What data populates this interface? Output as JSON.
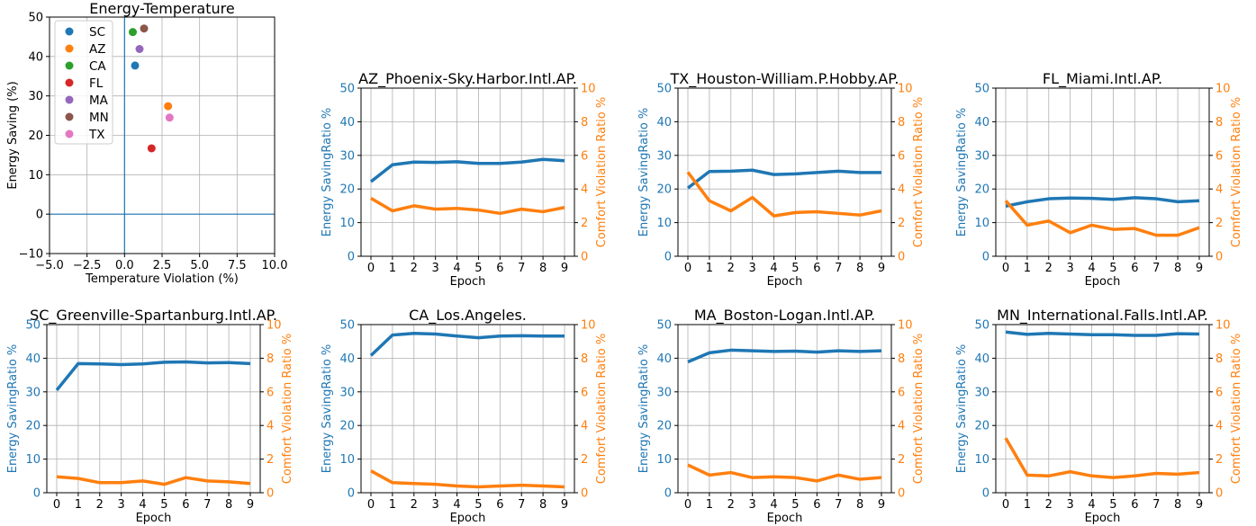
{
  "colors": {
    "energy": "#1f77b4",
    "comfort": "#ff7f0e",
    "scatter": {
      "SC": "#1f77b4",
      "AZ": "#ff7f0e",
      "CA": "#2ca02c",
      "FL": "#d62728",
      "MA": "#9467bd",
      "MN": "#8c564b",
      "TX": "#e377c2"
    }
  },
  "chart_data": [
    {
      "type": "scatter",
      "title": "Energy-Temperature",
      "xlabel": "Temperature Violation (%)",
      "ylabel": "Energy Saving (%)",
      "xlim": [
        -5,
        10
      ],
      "ylim": [
        -10,
        50
      ],
      "xticks": [
        -5,
        -2.5,
        0,
        2.5,
        5,
        7.5,
        10
      ],
      "xtick_labels": [
        "−5.0",
        "−2.5",
        "0.0",
        "2.5",
        "5.0",
        "7.5",
        "10.0"
      ],
      "yticks": [
        -10,
        0,
        10,
        20,
        30,
        40,
        50
      ],
      "ytick_labels": [
        "−10",
        "0",
        "10",
        "20",
        "30",
        "40",
        "50"
      ],
      "grid": true,
      "legend": "top-left",
      "points": [
        {
          "name": "SC",
          "x": 0.7,
          "y": 37.7
        },
        {
          "name": "AZ",
          "x": 2.9,
          "y": 27.4
        },
        {
          "name": "CA",
          "x": 0.55,
          "y": 46.2
        },
        {
          "name": "FL",
          "x": 1.8,
          "y": 16.7
        },
        {
          "name": "MA",
          "x": 1.0,
          "y": 41.9
        },
        {
          "name": "MN",
          "x": 1.3,
          "y": 47.1
        },
        {
          "name": "TX",
          "x": 3.0,
          "y": 24.5
        }
      ]
    },
    {
      "type": "line",
      "title": "AZ_Phoenix-Sky.Harbor.Intl.AP.",
      "xlabel": "Epoch",
      "ylabel_left": "Energy SavingRatio %",
      "ylabel_right": "Comfort  Violation Ratio %",
      "x": [
        0,
        1,
        2,
        3,
        4,
        5,
        6,
        7,
        8,
        9
      ],
      "ylim_left": [
        0,
        50
      ],
      "ylim_right": [
        0,
        10
      ],
      "series": [
        {
          "axis": "left",
          "values": [
            22.2,
            27.2,
            28.0,
            27.9,
            28.1,
            27.6,
            27.6,
            28.0,
            28.8,
            28.4
          ]
        },
        {
          "axis": "right",
          "values": [
            3.45,
            2.7,
            3.0,
            2.8,
            2.85,
            2.75,
            2.55,
            2.8,
            2.65,
            2.9
          ]
        }
      ]
    },
    {
      "type": "line",
      "title": "TX_Houston-William.P.Hobby.AP.",
      "xlabel": "Epoch",
      "ylabel_left": "Energy SavingRatio %",
      "ylabel_right": "Comfort  Violation Ratio %",
      "x": [
        0,
        1,
        2,
        3,
        4,
        5,
        6,
        7,
        8,
        9
      ],
      "ylim_left": [
        0,
        50
      ],
      "ylim_right": [
        0,
        10
      ],
      "series": [
        {
          "axis": "left",
          "values": [
            20.3,
            25.2,
            25.3,
            25.6,
            24.3,
            24.5,
            24.9,
            25.3,
            24.9,
            24.9
          ]
        },
        {
          "axis": "right",
          "values": [
            5.0,
            3.3,
            2.7,
            3.5,
            2.4,
            2.6,
            2.65,
            2.55,
            2.45,
            2.7
          ]
        }
      ]
    },
    {
      "type": "line",
      "title": "FL_Miami.Intl.AP.",
      "xlabel": "Epoch",
      "ylabel_left": "Energy SavingRatio %",
      "ylabel_right": "Comfort  Violation Ratio %",
      "x": [
        0,
        1,
        2,
        3,
        4,
        5,
        6,
        7,
        8,
        9
      ],
      "ylim_left": [
        0,
        50
      ],
      "ylim_right": [
        0,
        10
      ],
      "series": [
        {
          "axis": "left",
          "values": [
            14.9,
            16.2,
            17.1,
            17.3,
            17.2,
            16.9,
            17.4,
            17.1,
            16.2,
            16.5
          ]
        },
        {
          "axis": "right",
          "values": [
            3.3,
            1.85,
            2.1,
            1.4,
            1.85,
            1.6,
            1.65,
            1.25,
            1.25,
            1.7
          ]
        }
      ]
    },
    {
      "type": "line",
      "title": "SC_Greenville-Spartanburg.Intl.AP.",
      "xlabel": "Epoch",
      "ylabel_left": "Energy SavingRatio %",
      "ylabel_right": "Comfort  Violation Ratio %",
      "x": [
        0,
        1,
        2,
        3,
        4,
        5,
        6,
        7,
        8,
        9
      ],
      "ylim_left": [
        0,
        50
      ],
      "ylim_right": [
        0,
        10
      ],
      "series": [
        {
          "axis": "left",
          "values": [
            30.5,
            38.4,
            38.3,
            38.1,
            38.3,
            38.8,
            38.9,
            38.6,
            38.7,
            38.4
          ]
        },
        {
          "axis": "right",
          "values": [
            0.95,
            0.85,
            0.6,
            0.6,
            0.7,
            0.5,
            0.9,
            0.7,
            0.65,
            0.55
          ]
        }
      ]
    },
    {
      "type": "line",
      "title": "CA_Los.Angeles.",
      "xlabel": "Epoch",
      "ylabel_left": "Energy SavingRatio %",
      "ylabel_right": "Comfort  Violation Ratio %",
      "x": [
        0,
        1,
        2,
        3,
        4,
        5,
        6,
        7,
        8,
        9
      ],
      "ylim_left": [
        0,
        50
      ],
      "ylim_right": [
        0,
        10
      ],
      "series": [
        {
          "axis": "left",
          "values": [
            40.8,
            46.9,
            47.4,
            47.2,
            46.6,
            46.1,
            46.6,
            46.7,
            46.6,
            46.6
          ]
        },
        {
          "axis": "right",
          "values": [
            1.3,
            0.6,
            0.55,
            0.5,
            0.4,
            0.35,
            0.4,
            0.45,
            0.4,
            0.35
          ]
        }
      ]
    },
    {
      "type": "line",
      "title": "MA_Boston-Logan.Intl.AP.",
      "xlabel": "Epoch",
      "ylabel_left": "Energy SavingRatio %",
      "ylabel_right": "Comfort  Violation Ratio %",
      "x": [
        0,
        1,
        2,
        3,
        4,
        5,
        6,
        7,
        8,
        9
      ],
      "ylim_left": [
        0,
        50
      ],
      "ylim_right": [
        0,
        10
      ],
      "series": [
        {
          "axis": "left",
          "values": [
            38.9,
            41.6,
            42.4,
            42.2,
            42.0,
            42.1,
            41.8,
            42.2,
            42.0,
            42.2
          ]
        },
        {
          "axis": "right",
          "values": [
            1.65,
            1.05,
            1.2,
            0.9,
            0.95,
            0.9,
            0.7,
            1.05,
            0.8,
            0.9
          ]
        }
      ]
    },
    {
      "type": "line",
      "title": "MN_International.Falls.Intl.AP.",
      "xlabel": "Epoch",
      "ylabel_left": "Energy SavingRatio %",
      "ylabel_right": "Comfort  Violation Ratio %",
      "x": [
        0,
        1,
        2,
        3,
        4,
        5,
        6,
        7,
        8,
        9
      ],
      "ylim_left": [
        0,
        50
      ],
      "ylim_right": [
        0,
        10
      ],
      "series": [
        {
          "axis": "left",
          "values": [
            47.8,
            47.1,
            47.4,
            47.2,
            47.0,
            47.0,
            46.8,
            46.8,
            47.3,
            47.2
          ]
        },
        {
          "axis": "right",
          "values": [
            3.25,
            1.05,
            1.0,
            1.25,
            1.0,
            0.9,
            1.0,
            1.15,
            1.1,
            1.2
          ]
        }
      ]
    }
  ]
}
